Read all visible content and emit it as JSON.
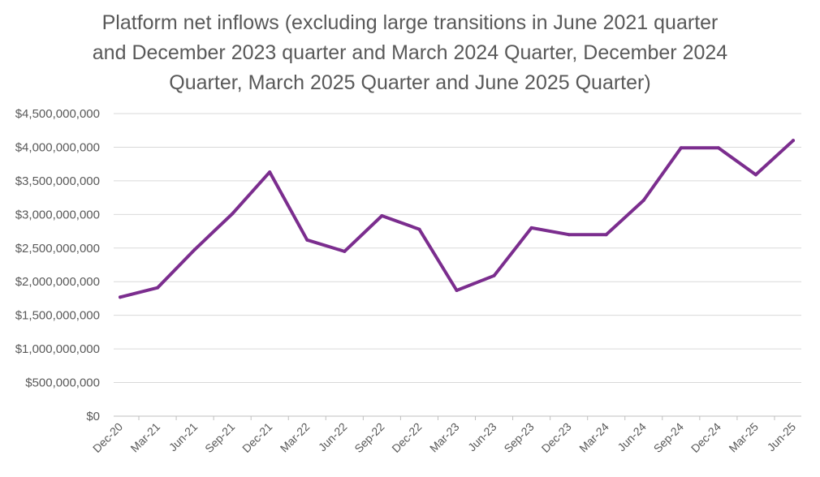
{
  "chart_data": {
    "type": "line",
    "title_lines": [
      "Platform net inflows (excluding large transitions in June 2021 quarter",
      "and December 2023 quarter and March 2024 Quarter, December 2024",
      "Quarter, March 2025 Quarter and June 2025 Quarter)"
    ],
    "xlabel": "",
    "ylabel": "",
    "categories": [
      "Dec-20",
      "Mar-21",
      "Jun-21",
      "Sep-21",
      "Dec-21",
      "Mar-22",
      "Jun-22",
      "Sep-22",
      "Dec-22",
      "Mar-23",
      "Jun-23",
      "Sep-23",
      "Dec-23",
      "Mar-24",
      "Jun-24",
      "Sep-24",
      "Dec-24",
      "Mar-25",
      "Jun-25"
    ],
    "series": [
      {
        "values": [
          1770000000,
          1910000000,
          2480000000,
          3010000000,
          3630000000,
          2620000000,
          2450000000,
          2980000000,
          2780000000,
          1870000000,
          2090000000,
          2800000000,
          2700000000,
          2700000000,
          3210000000,
          3990000000,
          3990000000,
          3590000000,
          4100000000
        ],
        "color": "#7B2D8E"
      }
    ],
    "ylim": [
      0,
      4500000000
    ],
    "yticks": [
      0,
      500000000,
      1000000000,
      1500000000,
      2000000000,
      2500000000,
      3000000000,
      3500000000,
      4000000000,
      4500000000
    ],
    "ytick_labels": [
      "$0",
      "$500,000,000",
      "$1,000,000,000",
      "$1,500,000,000",
      "$2,000,000,000",
      "$2,500,000,000",
      "$3,000,000,000",
      "$3,500,000,000",
      "$4,000,000,000",
      "$4,500,000,000"
    ],
    "grid": true,
    "gridline_color": "#D9D9D9",
    "legend": "none"
  }
}
